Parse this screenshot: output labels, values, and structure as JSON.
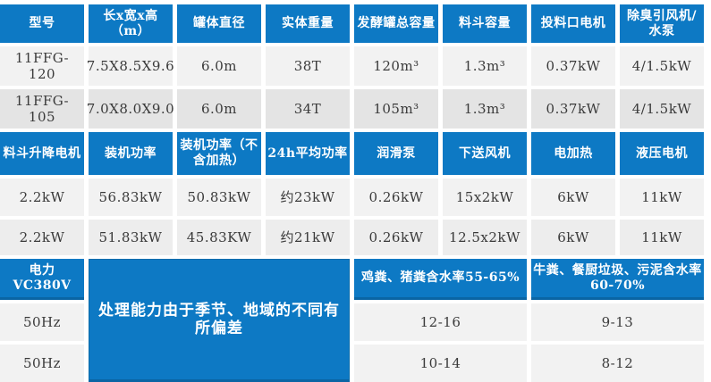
{
  "colors": {
    "header_blue": "#0d79c4",
    "header_border_dark": "#0a65a4",
    "row_light": "#f2f2f2",
    "row_dark": "#e4e4e4",
    "text_dark": "#3a3a3a",
    "header_text": "#ffffff"
  },
  "section1": {
    "headers": [
      "型号",
      "长x宽x高（m）",
      "罐体直径",
      "实体重量",
      "发酵罐总容量",
      "料斗容量",
      "投料口电机",
      "除臭引风机/水泵"
    ],
    "rows": [
      [
        "11FFG-120",
        "7.5X8.5X9.6",
        "6.0m",
        "38T",
        "120m³",
        "1.3m³",
        "0.37kW",
        "4/1.5kW"
      ],
      [
        "11FFG-105",
        "7.0X8.0X9.0",
        "6.0m",
        "34T",
        "105m³",
        "1.3m³",
        "0.37kW",
        "4/1.5kW"
      ]
    ]
  },
  "section2": {
    "headers": [
      "料斗升降电机",
      "装机功率",
      "装机功率（不含加热）",
      "24h平均功率",
      "润滑泵",
      "下送风机",
      "电加热",
      "液压电机"
    ],
    "rows": [
      [
        "2.2kW",
        "56.83kW",
        "50.83kW",
        "约23kW",
        "0.26kW",
        "15x2kW",
        "6kW",
        "11kW"
      ],
      [
        "2.2kW",
        "51.83kW",
        "45.83KW",
        "约21kW",
        "0.26kW",
        "12.5x2kW",
        "6kW",
        "11kW"
      ]
    ]
  },
  "section3": {
    "power_header": "电力VC380V",
    "freq_rows": [
      "50Hz",
      "50Hz"
    ],
    "note": "处理能力由于季节、地域的不同有所偏差",
    "material_a_header": "鸡粪、猪粪含水率55-65%",
    "material_b_header": "牛粪、餐厨垃圾、污泥含水率60-70%",
    "rows": [
      [
        "12-16",
        "9-13"
      ],
      [
        "10-14",
        "8-12"
      ]
    ]
  }
}
